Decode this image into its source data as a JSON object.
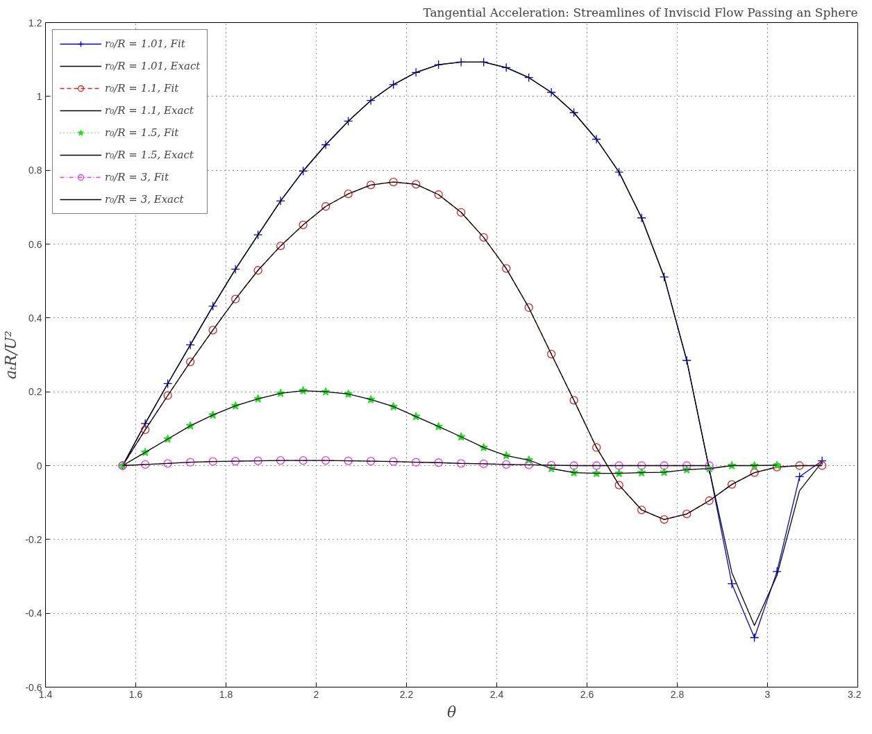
{
  "chart_data": {
    "type": "line",
    "title": "Tangential Acceleration: Streamlines of Inviscid Flow Passing an Sphere",
    "xlabel": "θ",
    "ylabel": "aₜR/U²",
    "x": [
      1.571,
      1.621,
      1.671,
      1.721,
      1.771,
      1.821,
      1.871,
      1.921,
      1.971,
      2.021,
      2.071,
      2.121,
      2.171,
      2.221,
      2.271,
      2.321,
      2.371,
      2.421,
      2.471,
      2.521,
      2.571,
      2.621,
      2.671,
      2.721,
      2.771,
      2.821,
      2.871,
      2.921,
      2.971,
      3.021,
      3.071,
      3.121
    ],
    "series": [
      {
        "name": "r₀/R = 1.01, Fit",
        "color": "#0000cc",
        "marker": "cross",
        "line_style": "solid",
        "values": [
          0,
          0.114,
          0.222,
          0.327,
          0.432,
          0.532,
          0.625,
          0.717,
          0.798,
          0.869,
          0.933,
          0.989,
          1.032,
          1.065,
          1.086,
          1.093,
          1.093,
          1.078,
          1.051,
          1.011,
          0.956,
          0.884,
          0.795,
          0.671,
          0.511,
          0.285,
          -0.01,
          -0.32,
          -0.466,
          -0.287,
          -0.03,
          0.013
        ]
      },
      {
        "name": "r₀/R = 1.01, Exact",
        "color": "#000000",
        "marker": "none",
        "line_style": "solid",
        "values": [
          0,
          0.114,
          0.222,
          0.327,
          0.432,
          0.532,
          0.625,
          0.717,
          0.798,
          0.869,
          0.933,
          0.989,
          1.032,
          1.065,
          1.086,
          1.093,
          1.093,
          1.078,
          1.051,
          1.011,
          0.956,
          0.884,
          0.795,
          0.671,
          0.511,
          0.285,
          -0.01,
          -0.29,
          -0.433,
          -0.297,
          -0.068,
          0.01
        ]
      },
      {
        "name": "r₀/R = 1.1, Fit",
        "color": "#dd2222",
        "marker": "circle",
        "line_style": "dashed",
        "values": [
          0,
          0.097,
          0.19,
          0.281,
          0.367,
          0.451,
          0.529,
          0.595,
          0.652,
          0.702,
          0.736,
          0.76,
          0.768,
          0.762,
          0.734,
          0.686,
          0.618,
          0.534,
          0.428,
          0.302,
          0.177,
          0.049,
          -0.053,
          -0.12,
          -0.146,
          -0.131,
          -0.095,
          -0.051,
          -0.019,
          -0.004,
          0,
          0
        ]
      },
      {
        "name": "r₀/R = 1.1, Exact",
        "color": "#000000",
        "marker": "none",
        "line_style": "solid",
        "values": [
          0,
          0.097,
          0.19,
          0.281,
          0.367,
          0.451,
          0.529,
          0.595,
          0.652,
          0.702,
          0.736,
          0.76,
          0.768,
          0.762,
          0.734,
          0.686,
          0.618,
          0.534,
          0.428,
          0.302,
          0.177,
          0.049,
          -0.053,
          -0.12,
          -0.146,
          -0.131,
          -0.095,
          -0.051,
          -0.019,
          -0.004,
          0,
          0
        ]
      },
      {
        "name": "r₀/R = 1.5, Fit",
        "color": "#22dd22",
        "marker": "star",
        "line_style": "dotted",
        "values": [
          0,
          0.036,
          0.072,
          0.108,
          0.137,
          0.162,
          0.181,
          0.196,
          0.203,
          0.2,
          0.194,
          0.179,
          0.16,
          0.133,
          0.106,
          0.078,
          0.049,
          0.027,
          0.015,
          -0.008,
          -0.019,
          -0.021,
          -0.021,
          -0.019,
          -0.018,
          -0.011,
          -0.008,
          0,
          0,
          0.001,
          null,
          null
        ]
      },
      {
        "name": "r₀/R = 1.5, Exact",
        "color": "#000000",
        "marker": "none",
        "line_style": "solid",
        "values": [
          0,
          0.036,
          0.072,
          0.108,
          0.137,
          0.162,
          0.181,
          0.196,
          0.203,
          0.2,
          0.194,
          0.179,
          0.16,
          0.133,
          0.106,
          0.078,
          0.049,
          0.027,
          0.015,
          -0.008,
          -0.019,
          -0.021,
          -0.021,
          -0.019,
          -0.018,
          -0.011,
          -0.008,
          0,
          0,
          0.001,
          null,
          null
        ]
      },
      {
        "name": "r₀/R = 3, Fit",
        "color": "#ee33ee",
        "marker": "circle",
        "line_style": "dashdot",
        "values": [
          0,
          0.003,
          0.006,
          0.009,
          0.011,
          0.012,
          0.013,
          0.014,
          0.014,
          0.014,
          0.013,
          0.012,
          0.011,
          0.009,
          0.008,
          0.006,
          0.005,
          0.003,
          0.002,
          0.001,
          0,
          0,
          0,
          0,
          0,
          0,
          0,
          null,
          null,
          null,
          null,
          null
        ]
      },
      {
        "name": "r₀/R = 3, Exact",
        "color": "#000000",
        "marker": "none",
        "line_style": "solid",
        "values": [
          0,
          0.003,
          0.006,
          0.009,
          0.011,
          0.012,
          0.013,
          0.014,
          0.014,
          0.014,
          0.013,
          0.012,
          0.011,
          0.009,
          0.008,
          0.006,
          0.005,
          0.003,
          0.002,
          0.001,
          0,
          0,
          0,
          0,
          0,
          0,
          0,
          null,
          null,
          null,
          null,
          null
        ]
      }
    ],
    "xlim": [
      1.4,
      3.2
    ],
    "xticks": [
      1.4,
      1.6,
      1.8,
      2,
      2.2,
      2.4,
      2.6,
      2.8,
      3,
      3.2
    ],
    "ylim": [
      -0.6,
      1.2
    ],
    "yticks": [
      -0.6,
      -0.4,
      -0.2,
      0,
      0.2,
      0.4,
      0.6,
      0.8,
      1,
      1.2
    ],
    "grid": true,
    "legend": "top left"
  }
}
